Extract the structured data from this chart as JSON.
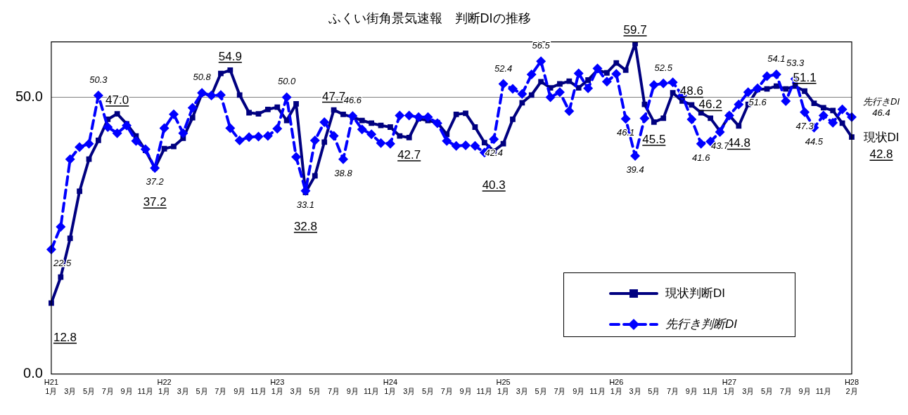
{
  "chart_data": {
    "type": "line",
    "title": "ふくい街角景気速報　判断DIの推移",
    "categories": [
      "H21\n1月",
      null,
      "3月",
      null,
      "5月",
      null,
      "7月",
      null,
      "9月",
      null,
      "11月",
      null,
      "H22\n1月",
      null,
      "3月",
      null,
      "5月",
      null,
      "7月",
      null,
      "9月",
      null,
      "11月",
      null,
      "H23\n1月",
      null,
      "3月",
      null,
      "5月",
      null,
      "7月",
      null,
      "9月",
      null,
      "11月",
      null,
      "H24\n1月",
      null,
      "3月",
      null,
      "5月",
      null,
      "7月",
      null,
      "9月",
      null,
      "11月",
      null,
      "H25\n1月",
      null,
      "3月",
      null,
      "5月",
      null,
      "7月",
      null,
      "9月",
      null,
      "11月",
      null,
      "H26\n1月",
      null,
      "3月",
      null,
      "5月",
      null,
      "7月",
      null,
      "9月",
      null,
      "11月",
      null,
      "H27\n1月",
      null,
      "3月",
      null,
      "5月",
      null,
      "7月",
      null,
      "9月",
      null,
      "11月",
      null,
      null,
      "H28\n2月"
    ],
    "series": [
      {
        "name": "現状判断DI",
        "color": "#000080",
        "marker": "square",
        "line_style": "solid",
        "values": [
          12.8,
          17.5,
          24.5,
          33.0,
          38.8,
          42.2,
          46.0,
          47.0,
          45.2,
          43.0,
          40.4,
          37.2,
          40.7,
          41.1,
          42.6,
          46.3,
          50.7,
          50.3,
          54.3,
          54.9,
          50.4,
          47.2,
          47.0,
          47.8,
          48.2,
          45.8,
          48.8,
          32.8,
          35.8,
          41.9,
          47.7,
          46.9,
          46.4,
          45.8,
          45.3,
          44.9,
          44.6,
          43.0,
          42.7,
          46.1,
          45.8,
          45.4,
          43.3,
          46.9,
          47.1,
          44.6,
          41.8,
          40.3,
          41.6,
          46.0,
          49.0,
          50.4,
          52.8,
          51.7,
          52.4,
          52.9,
          51.7,
          53.1,
          54.9,
          54.4,
          56.2,
          54.9,
          59.7,
          48.7,
          45.5,
          46.2,
          50.8,
          49.3,
          48.6,
          47.2,
          46.2,
          43.9,
          46.7,
          44.8,
          48.7,
          51.4,
          51.5,
          52.0,
          51.5,
          52.0,
          51.1,
          48.9,
          48.1,
          47.6,
          45.3,
          42.8
        ],
        "value_labels": [
          "12.8",
          null,
          null,
          null,
          null,
          null,
          null,
          "47.0",
          null,
          null,
          null,
          "37.2",
          null,
          null,
          null,
          null,
          null,
          null,
          null,
          "54.9",
          null,
          null,
          null,
          null,
          null,
          null,
          null,
          "32.8",
          null,
          null,
          "47.7",
          null,
          null,
          null,
          null,
          null,
          null,
          null,
          "42.7",
          null,
          null,
          null,
          null,
          null,
          null,
          null,
          null,
          "40.3",
          null,
          null,
          null,
          null,
          null,
          null,
          null,
          null,
          null,
          null,
          null,
          null,
          null,
          null,
          "59.7",
          null,
          "45.5",
          null,
          null,
          null,
          "48.6",
          null,
          "46.2",
          null,
          null,
          "44.8",
          null,
          null,
          null,
          null,
          null,
          null,
          "51.1",
          null,
          null,
          null,
          null,
          "42.8"
        ]
      },
      {
        "name": "先行き判断DI",
        "color": "#0000ff",
        "marker": "diamond",
        "line_style": "dashed",
        "values": [
          22.5,
          26.6,
          38.8,
          41.0,
          41.6,
          50.3,
          44.6,
          43.5,
          44.9,
          42.1,
          40.6,
          37.2,
          44.4,
          46.9,
          43.5,
          48.1,
          50.8,
          50.3,
          50.4,
          44.4,
          42.2,
          42.8,
          42.9,
          43.0,
          44.3,
          50.0,
          39.2,
          33.1,
          42.2,
          45.5,
          43.0,
          38.8,
          46.6,
          44.2,
          43.3,
          41.7,
          41.6,
          46.7,
          46.7,
          46.4,
          46.4,
          45.3,
          42.1,
          41.2,
          41.3,
          41.2,
          40.0,
          42.4,
          52.4,
          51.5,
          50.6,
          54.1,
          56.5,
          50.0,
          50.9,
          47.5,
          54.3,
          51.6,
          55.2,
          52.8,
          54.2,
          46.1,
          39.4,
          46.2,
          52.2,
          52.5,
          52.7,
          50.3,
          46.0,
          41.6,
          42.0,
          43.7,
          46.7,
          48.7,
          50.9,
          51.6,
          53.8,
          54.1,
          49.3,
          53.3,
          47.3,
          44.5,
          46.7,
          45.4,
          47.8,
          46.4
        ],
        "value_labels": [
          "22.5",
          null,
          null,
          null,
          null,
          "50.3",
          null,
          null,
          null,
          null,
          null,
          "37.2",
          null,
          null,
          null,
          null,
          "50.8",
          null,
          null,
          null,
          null,
          null,
          null,
          null,
          null,
          "50.0",
          null,
          "33.1",
          null,
          null,
          null,
          "38.8",
          "46.6",
          null,
          null,
          null,
          null,
          null,
          null,
          null,
          null,
          null,
          null,
          null,
          null,
          null,
          null,
          "42.4",
          "52.4",
          null,
          null,
          null,
          "56.5",
          null,
          null,
          null,
          null,
          null,
          null,
          null,
          null,
          "46.1",
          "39.4",
          null,
          null,
          "52.5",
          null,
          null,
          null,
          "41.6",
          null,
          "43.7",
          null,
          null,
          null,
          "51.6",
          null,
          "54.1",
          null,
          "53.3",
          "47.3",
          "44.5",
          null,
          null,
          null,
          "46.4"
        ]
      }
    ],
    "annotations": [
      "現状DI",
      "先行きDI"
    ],
    "ylim": [
      0,
      60
    ],
    "yticks": [
      {
        "value": 0,
        "label": "0.0"
      },
      {
        "value": 50,
        "label": "50.0"
      }
    ],
    "grid": "y",
    "legend": "bottom right"
  }
}
